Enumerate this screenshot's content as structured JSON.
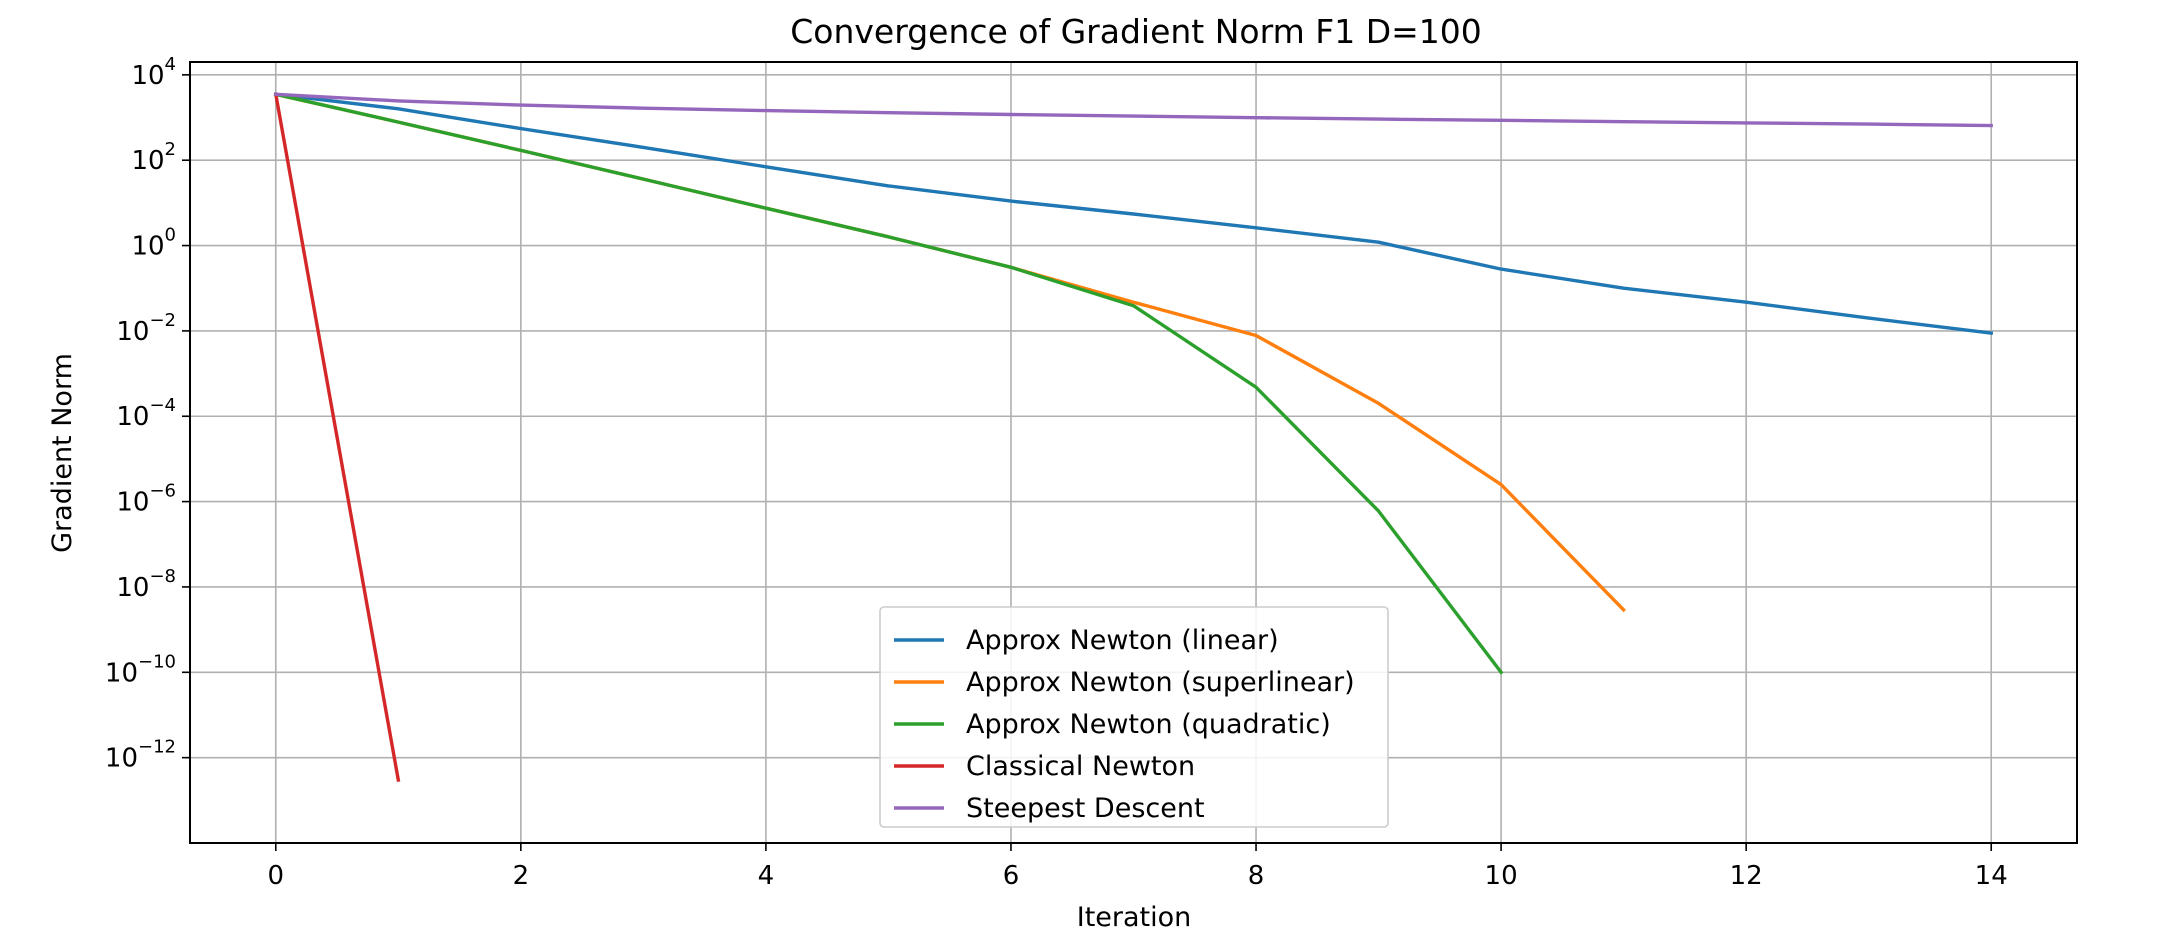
{
  "chart_data": {
    "type": "line",
    "title": "Convergence of Gradient Norm F1 D=100",
    "xlabel": "Iteration",
    "ylabel": "Gradient Norm",
    "yscale": "log",
    "xlim": [
      -0.7,
      14.7
    ],
    "ylim": [
      1e-14,
      20000
    ],
    "grid": true,
    "legend_position": "lower center",
    "xticks": [
      0,
      2,
      4,
      6,
      8,
      10,
      12,
      14
    ],
    "yticks": [
      {
        "value": 10000,
        "base": "10",
        "exp": "4"
      },
      {
        "value": 100,
        "base": "10",
        "exp": "2"
      },
      {
        "value": 1,
        "base": "10",
        "exp": "0"
      },
      {
        "value": 0.01,
        "base": "10",
        "exp": "−2"
      },
      {
        "value": 0.0001,
        "base": "10",
        "exp": "−4"
      },
      {
        "value": 1e-06,
        "base": "10",
        "exp": "−6"
      },
      {
        "value": 1e-08,
        "base": "10",
        "exp": "−8"
      },
      {
        "value": 1e-10,
        "base": "10",
        "exp": "−10"
      },
      {
        "value": 1e-12,
        "base": "10",
        "exp": "−12"
      }
    ],
    "series": [
      {
        "name": "Approx Newton (linear)",
        "color": "#1f77b4",
        "x": [
          0,
          1,
          2,
          3,
          4,
          5,
          6,
          7,
          8,
          9,
          10,
          11,
          12,
          13,
          14
        ],
        "y": [
          3500,
          1600,
          550,
          200,
          70,
          25,
          11,
          5.5,
          2.6,
          1.2,
          0.28,
          0.1,
          0.047,
          0.02,
          0.0089
        ]
      },
      {
        "name": "Approx Newton (superlinear)",
        "color": "#ff7f0e",
        "x": [
          0,
          1,
          2,
          3,
          4,
          5,
          6,
          7,
          8,
          9,
          10,
          11
        ],
        "y": [
          3500,
          780,
          170,
          36,
          7.5,
          1.6,
          0.31,
          0.047,
          0.0078,
          0.0002,
          2.5e-06,
          2.9e-09
        ]
      },
      {
        "name": "Approx Newton (quadratic)",
        "color": "#2ca02c",
        "x": [
          0,
          1,
          2,
          3,
          4,
          5,
          6,
          7,
          8,
          9,
          10
        ],
        "y": [
          3500,
          780,
          170,
          36,
          7.5,
          1.6,
          0.31,
          0.039,
          0.00048,
          6e-07,
          1e-10
        ]
      },
      {
        "name": "Classical Newton",
        "color": "#d62728",
        "x": [
          0,
          1
        ],
        "y": [
          3500,
          3e-13
        ]
      },
      {
        "name": "Steepest Descent",
        "color": "#9467bd",
        "x": [
          0,
          1,
          2,
          3,
          4,
          5,
          6,
          7,
          8,
          9,
          10,
          11,
          12,
          13,
          14
        ],
        "y": [
          3500,
          2450,
          1950,
          1650,
          1450,
          1300,
          1180,
          1080,
          990,
          920,
          860,
          800,
          750,
          700,
          650
        ]
      }
    ]
  }
}
